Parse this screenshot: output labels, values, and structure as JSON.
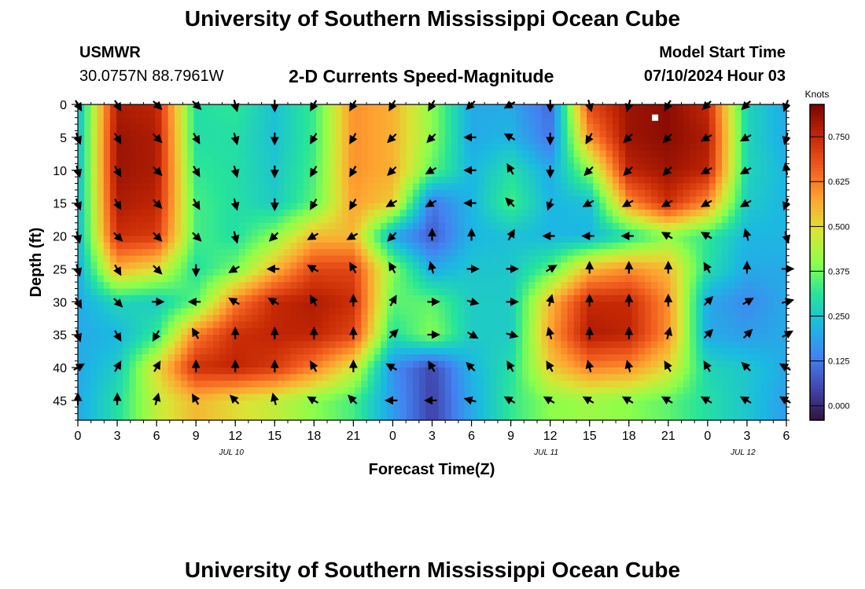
{
  "page_title": "University of Southern Mississippi Ocean Cube",
  "footer_title": "University of Southern Mississippi Ocean Cube",
  "station": {
    "id": "USMWR",
    "coords": "30.0757N  88.7961W"
  },
  "model": {
    "label": "Model Start Time",
    "value": "07/10/2024 Hour 03"
  },
  "chart_data": {
    "type": "heatmap",
    "title": "2-D Currents Speed-Magnitude",
    "xlabel": "Forecast Time(Z)",
    "ylabel": "Depth (ft)",
    "x_ticks": [
      "0",
      "3",
      "6",
      "9",
      "12",
      "15",
      "18",
      "21",
      "0",
      "3",
      "6",
      "9",
      "12",
      "15",
      "18",
      "21",
      "0",
      "3",
      "6"
    ],
    "x_range_hours": [
      0,
      54
    ],
    "y_ticks": [
      "0",
      "5",
      "10",
      "15",
      "20",
      "25",
      "30",
      "35",
      "40",
      "45"
    ],
    "y_range": [
      0,
      48
    ],
    "date_labels": [
      {
        "text": "JUL 10",
        "hour": 12
      },
      {
        "text": "JUL 11",
        "hour": 36
      },
      {
        "text": "JUL 12",
        "hour": 51
      }
    ],
    "colorbar": {
      "label": "Knots",
      "ticks": [
        "0.000",
        "0.125",
        "0.250",
        "0.375",
        "0.500",
        "0.625",
        "0.750"
      ],
      "range": [
        -0.04,
        0.84
      ]
    },
    "speed_field_knots": {
      "hours": [
        0,
        3,
        6,
        9,
        12,
        15,
        18,
        21,
        24,
        27,
        30,
        33,
        36,
        39,
        42,
        45,
        48,
        51,
        54
      ],
      "depths": [
        0,
        5,
        10,
        15,
        20,
        25,
        30,
        35,
        40,
        45
      ],
      "rows": [
        [
          0.22,
          0.78,
          0.76,
          0.3,
          0.32,
          0.24,
          0.33,
          0.6,
          0.56,
          0.4,
          0.2,
          0.2,
          0.1,
          0.7,
          0.8,
          0.82,
          0.75,
          0.28,
          0.2
        ],
        [
          0.22,
          0.8,
          0.78,
          0.3,
          0.3,
          0.24,
          0.33,
          0.6,
          0.56,
          0.4,
          0.2,
          0.22,
          0.12,
          0.6,
          0.8,
          0.82,
          0.78,
          0.28,
          0.2
        ],
        [
          0.22,
          0.8,
          0.78,
          0.32,
          0.3,
          0.25,
          0.34,
          0.6,
          0.56,
          0.36,
          0.22,
          0.3,
          0.2,
          0.4,
          0.76,
          0.8,
          0.76,
          0.28,
          0.22
        ],
        [
          0.22,
          0.78,
          0.76,
          0.34,
          0.3,
          0.26,
          0.36,
          0.58,
          0.52,
          0.12,
          0.22,
          0.34,
          0.22,
          0.24,
          0.6,
          0.74,
          0.6,
          0.26,
          0.22
        ],
        [
          0.22,
          0.74,
          0.72,
          0.34,
          0.3,
          0.4,
          0.55,
          0.55,
          0.2,
          0.08,
          0.22,
          0.24,
          0.22,
          0.22,
          0.3,
          0.4,
          0.32,
          0.22,
          0.22
        ],
        [
          0.2,
          0.56,
          0.5,
          0.3,
          0.38,
          0.55,
          0.7,
          0.7,
          0.4,
          0.2,
          0.25,
          0.25,
          0.35,
          0.55,
          0.6,
          0.55,
          0.3,
          0.2,
          0.2
        ],
        [
          0.2,
          0.28,
          0.26,
          0.36,
          0.62,
          0.75,
          0.78,
          0.74,
          0.36,
          0.36,
          0.26,
          0.26,
          0.55,
          0.75,
          0.75,
          0.6,
          0.2,
          0.15,
          0.2
        ],
        [
          0.2,
          0.22,
          0.32,
          0.62,
          0.74,
          0.76,
          0.76,
          0.7,
          0.3,
          0.4,
          0.26,
          0.26,
          0.58,
          0.78,
          0.76,
          0.6,
          0.2,
          0.18,
          0.2
        ],
        [
          0.2,
          0.26,
          0.5,
          0.74,
          0.76,
          0.72,
          0.62,
          0.48,
          0.16,
          0.05,
          0.22,
          0.3,
          0.52,
          0.62,
          0.6,
          0.5,
          0.28,
          0.25,
          0.2
        ],
        [
          0.2,
          0.3,
          0.46,
          0.55,
          0.5,
          0.46,
          0.4,
          0.34,
          0.18,
          0.04,
          0.2,
          0.32,
          0.4,
          0.42,
          0.4,
          0.36,
          0.3,
          0.25,
          0.18
        ]
      ]
    },
    "vector_directions_deg": {
      "note": "arrow direction, degrees clockwise from up (north); one per grid node",
      "rows": [
        [
          150,
          150,
          135,
          135,
          165,
          180,
          210,
          210,
          210,
          210,
          225,
          240,
          180,
          165,
          195,
          210,
          225,
          225,
          200
        ],
        [
          160,
          150,
          135,
          150,
          165,
          180,
          210,
          210,
          225,
          225,
          270,
          300,
          180,
          210,
          225,
          225,
          240,
          240,
          195
        ],
        [
          165,
          150,
          135,
          150,
          165,
          180,
          210,
          210,
          225,
          240,
          270,
          330,
          180,
          225,
          225,
          225,
          240,
          240,
          350
        ],
        [
          160,
          150,
          135,
          150,
          165,
          180,
          210,
          210,
          240,
          240,
          270,
          315,
          200,
          240,
          240,
          240,
          240,
          240,
          200
        ],
        [
          165,
          135,
          135,
          135,
          165,
          225,
          240,
          240,
          225,
          0,
          0,
          30,
          270,
          270,
          270,
          300,
          300,
          345,
          165
        ],
        [
          165,
          150,
          135,
          180,
          240,
          270,
          300,
          330,
          330,
          345,
          90,
          90,
          60,
          0,
          0,
          0,
          330,
          0,
          90
        ],
        [
          150,
          135,
          90,
          270,
          300,
          300,
          330,
          0,
          30,
          90,
          105,
          90,
          15,
          0,
          0,
          0,
          45,
          60,
          75
        ],
        [
          160,
          150,
          210,
          330,
          0,
          0,
          0,
          0,
          45,
          90,
          120,
          105,
          345,
          0,
          0,
          15,
          45,
          45,
          60
        ],
        [
          60,
          30,
          30,
          0,
          0,
          0,
          330,
          0,
          300,
          330,
          315,
          330,
          330,
          345,
          345,
          330,
          330,
          315,
          300
        ],
        [
          0,
          0,
          15,
          330,
          315,
          345,
          300,
          315,
          270,
          270,
          285,
          300,
          300,
          300,
          300,
          300,
          300,
          300,
          300
        ]
      ]
    },
    "annotations": [
      {
        "text": "white square marker",
        "hour": 44,
        "depth": 2
      }
    ]
  }
}
